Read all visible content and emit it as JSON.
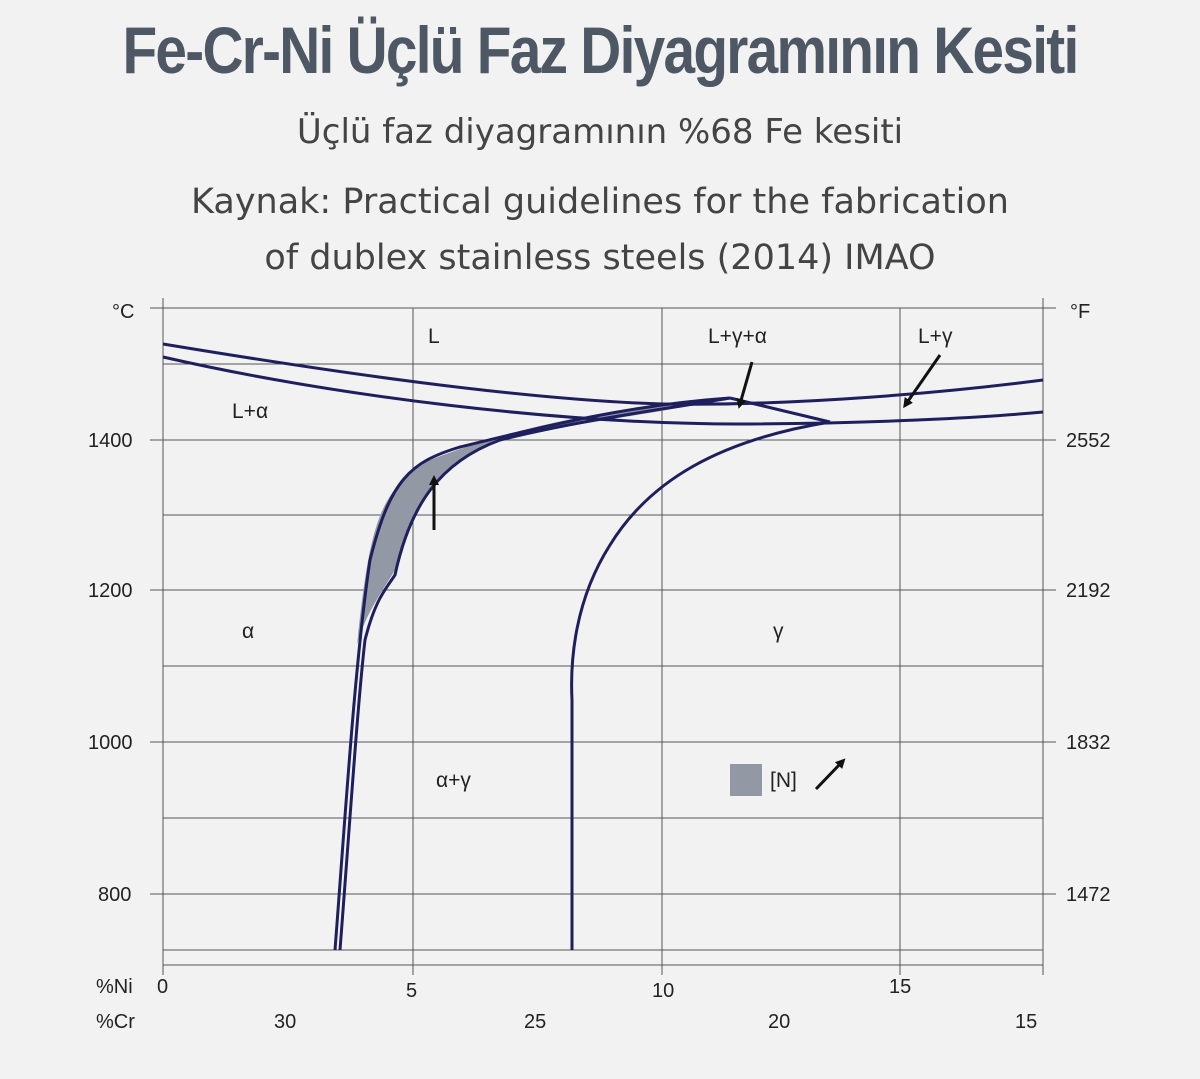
{
  "header": {
    "title": "Fe-Cr-Ni Üçlü Faz Diyagramının Kesiti",
    "subtitle": "Üçlü faz diyagramının %68 Fe kesiti",
    "source_line1": "Kaynak: Practical guidelines for the fabrication",
    "source_line2": "of dublex stainless steels (2014) IMAO"
  },
  "axes": {
    "left_unit": "°C",
    "right_unit": "°F",
    "left_ticks": [
      "1400",
      "1200",
      "1000",
      "800"
    ],
    "right_ticks": [
      "2552",
      "2192",
      "1832",
      "1472"
    ],
    "ni_label": "%Ni",
    "cr_label": "%Cr",
    "ni_ticks": [
      "0",
      "5",
      "10",
      "15"
    ],
    "cr_ticks": [
      "30",
      "25",
      "20",
      "15"
    ]
  },
  "regions": {
    "liquid": "L",
    "l_gamma_alpha": "L+γ+α",
    "l_gamma": "L+γ",
    "l_alpha": "L+α",
    "alpha": "α",
    "gamma": "γ",
    "alpha_gamma": "α+γ"
  },
  "legend": {
    "nitrogen_label": "[N]"
  },
  "colors": {
    "curve": "#1f1f5e",
    "shaded": "#9299a4",
    "grid": "#555555",
    "title": "#4e5865"
  }
}
